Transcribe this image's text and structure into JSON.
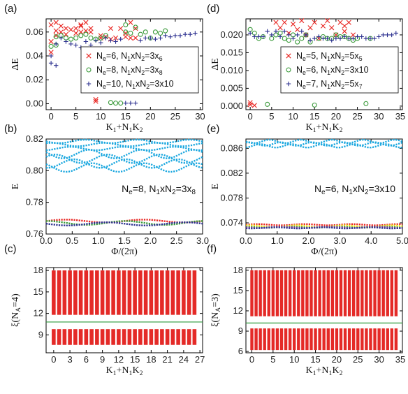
{
  "chart_data": [
    {
      "panel": "(a)",
      "type": "scatter",
      "xlabel": "K1+N1K2",
      "ylabel": "ΔE",
      "xlim": [
        -1,
        30.5
      ],
      "ylim": [
        -0.005,
        0.071
      ],
      "xticks": [
        "0",
        "5",
        "10",
        "15",
        "20",
        "25",
        "30"
      ],
      "yticks": [
        "0.00",
        "0.02",
        "0.04",
        "0.06"
      ],
      "ytick_values": [
        0,
        0.02,
        0.04,
        0.06
      ],
      "xtick_values": [
        0,
        5,
        10,
        15,
        20,
        25,
        30
      ],
      "series": [
        {
          "name": "Ne=6, N1xN2=3x6",
          "marker": "x",
          "color": "#e8231f",
          "points": [
            [
              0,
              0.066
            ],
            [
              0,
              0.052
            ],
            [
              0,
              0.043
            ],
            [
              1,
              0.068
            ],
            [
              1,
              0.061
            ],
            [
              1,
              0.057
            ],
            [
              2,
              0.065
            ],
            [
              2,
              0.06
            ],
            [
              3,
              0.063
            ],
            [
              3,
              0.058
            ],
            [
              4,
              0.062
            ],
            [
              5,
              0.059
            ],
            [
              5,
              0.063
            ],
            [
              6,
              0.066
            ],
            [
              6,
              0.06
            ],
            [
              6,
              0.065
            ],
            [
              7,
              0.068
            ],
            [
              7,
              0.061
            ],
            [
              8,
              0.06
            ],
            [
              8,
              0.063
            ],
            [
              9,
              0.002
            ],
            [
              9,
              0.0035
            ],
            [
              10,
              0.055
            ],
            [
              10,
              0.057
            ],
            [
              11,
              0.056
            ],
            [
              12,
              0.063
            ],
            [
              12,
              0.054
            ],
            [
              13,
              0.055
            ],
            [
              14,
              0.063
            ],
            [
              15,
              0.059
            ],
            [
              15,
              0.056
            ],
            [
              16,
              0.055
            ],
            [
              16,
              0.068
            ],
            [
              17,
              0.063
            ],
            [
              17,
              0.055
            ]
          ]
        },
        {
          "name": "Ne=8, N1xN2=3x8",
          "marker": "o",
          "color": "#3a9a3a",
          "points": [
            [
              0,
              0.048
            ],
            [
              1,
              0.049
            ],
            [
              1,
              0.056
            ],
            [
              2,
              0.057
            ],
            [
              3,
              0.055
            ],
            [
              4,
              0.054
            ],
            [
              5,
              0.055
            ],
            [
              6,
              0.057
            ],
            [
              7,
              0.058
            ],
            [
              8,
              0.055
            ],
            [
              9,
              0.054
            ],
            [
              10,
              0.055
            ],
            [
              11,
              0.057
            ],
            [
              12,
              0.001
            ],
            [
              13,
              0.0005
            ],
            [
              14,
              0.0005
            ],
            [
              15,
              0.06
            ],
            [
              15,
              0.066
            ],
            [
              16,
              0.059
            ],
            [
              17,
              0.064
            ],
            [
              18,
              0.058
            ],
            [
              19,
              0.06
            ],
            [
              20,
              0.055
            ],
            [
              21,
              0.06
            ],
            [
              22,
              0.059
            ],
            [
              23,
              0.061
            ]
          ]
        },
        {
          "name": "Ne=10, N1xN2=3x10",
          "marker": "+",
          "color": "#2b2f8f",
          "points": [
            [
              0,
              0.034
            ],
            [
              0,
              0.04
            ],
            [
              1,
              0.032
            ],
            [
              1,
              0.05
            ],
            [
              2,
              0.055
            ],
            [
              3,
              0.052
            ],
            [
              4,
              0.05
            ],
            [
              5,
              0.049
            ],
            [
              6,
              0.047
            ],
            [
              7,
              0.052
            ],
            [
              8,
              0.049
            ],
            [
              9,
              0.053
            ],
            [
              10,
              0.051
            ],
            [
              11,
              0.055
            ],
            [
              12,
              0.053
            ],
            [
              13,
              0.052
            ],
            [
              14,
              0.054
            ],
            [
              15,
              0.0005
            ],
            [
              16,
              0.0005
            ],
            [
              17,
              0.0005
            ],
            [
              18,
              0.053
            ],
            [
              19,
              0.055
            ],
            [
              20,
              0.055
            ],
            [
              21,
              0.054
            ],
            [
              22,
              0.055
            ],
            [
              23,
              0.057
            ],
            [
              24,
              0.056
            ],
            [
              25,
              0.057
            ],
            [
              26,
              0.057
            ],
            [
              27,
              0.058
            ],
            [
              28,
              0.058
            ],
            [
              29,
              0.059
            ]
          ]
        }
      ]
    },
    {
      "panel": "(b)",
      "type": "line",
      "xlabel": "Φ/(2π)",
      "ylabel": "E",
      "xlim": [
        0,
        3
      ],
      "ylim": [
        0.76,
        0.82
      ],
      "xticks": [
        "0.0",
        "0.5",
        "1.0",
        "1.5",
        "2.0",
        "2.5",
        "3.0"
      ],
      "xtick_values": [
        0,
        0.5,
        1,
        1.5,
        2,
        2.5,
        3
      ],
      "yticks": [
        "0.76",
        "0.78",
        "0.80",
        "0.82"
      ],
      "ytick_values": [
        0.76,
        0.78,
        0.8,
        0.82
      ],
      "annotation": "Ne=8, N1xN2=3x8",
      "upper_band": {
        "color": "#1aa7df",
        "levels": [
          0.8185,
          0.8165,
          0.814,
          0.8105,
          0.8075,
          0.8045,
          0.802
        ]
      },
      "lower_bands": [
        {
          "color": "#e8231f",
          "center": 0.7682,
          "amp": 0.0009,
          "phase": 0
        },
        {
          "color": "#3a9a3a",
          "center": 0.767,
          "amp": 0.0012,
          "phase": 1.5
        },
        {
          "color": "#2b2f8f",
          "center": 0.7664,
          "amp": 0.001,
          "phase": 3
        }
      ]
    },
    {
      "panel": "(c)",
      "type": "scatter",
      "xlabel": "K1+N1K2",
      "ylabel": "ξ(NA=4)",
      "xlim": [
        -1.4,
        27.5
      ],
      "ylim": [
        6.5,
        18.4
      ],
      "xticks": [
        "0",
        "3",
        "6",
        "9",
        "12",
        "15",
        "18",
        "21",
        "24",
        "27"
      ],
      "xtick_values": [
        0,
        3,
        6,
        9,
        12,
        15,
        18,
        21,
        24,
        27
      ],
      "yticks": [
        "9",
        "12",
        "15",
        "18"
      ],
      "ytick_values": [
        9,
        12,
        15,
        18
      ],
      "gap_line": 10.8,
      "ranges": {
        "upper": [
          11.8,
          18.0
        ],
        "lower": [
          7.6,
          9.8
        ]
      },
      "sectors": 27
    },
    {
      "panel": "(d)",
      "type": "scatter",
      "xlabel": "K1+N1K2",
      "ylabel": "ΔE",
      "xlim": [
        -1,
        35.5
      ],
      "ylim": [
        -0.001,
        0.0245
      ],
      "xticks": [
        "0",
        "5",
        "10",
        "15",
        "20",
        "25",
        "30",
        "35"
      ],
      "xtick_values": [
        0,
        5,
        10,
        15,
        20,
        25,
        30,
        35
      ],
      "yticks": [
        "0.000",
        "0.005",
        "0.010",
        "0.015",
        "0.020"
      ],
      "ytick_values": [
        0,
        0.005,
        0.01,
        0.015,
        0.02
      ],
      "series": [
        {
          "name": "Ne=5, N1xN2=5x5",
          "marker": "x",
          "color": "#e8231f",
          "points": [
            [
              0,
              0.0004
            ],
            [
              0,
              0.001
            ],
            [
              1,
              0.0002
            ],
            [
              6,
              0.0235
            ],
            [
              7,
              0.022
            ],
            [
              8,
              0.0235
            ],
            [
              9,
              0.0205
            ],
            [
              10,
              0.023
            ],
            [
              11,
              0.0215
            ],
            [
              12,
              0.024
            ],
            [
              13,
              0.02
            ],
            [
              14,
              0.022
            ],
            [
              15,
              0.0235
            ],
            [
              16,
              0.019
            ],
            [
              17,
              0.0225
            ],
            [
              18,
              0.024
            ],
            [
              19,
              0.022
            ],
            [
              20,
              0.02
            ],
            [
              21,
              0.0235
            ],
            [
              22,
              0.0225
            ],
            [
              22,
              0.021
            ],
            [
              23,
              0.0235
            ],
            [
              24,
              0.02
            ]
          ]
        },
        {
          "name": "Ne=6, N1xN2=3x10",
          "marker": "o",
          "color": "#3a9a3a",
          "points": [
            [
              0,
              0.0215
            ],
            [
              1,
              0.0205
            ],
            [
              2,
              0.019
            ],
            [
              3,
              0.0195
            ],
            [
              4,
              0.0005
            ],
            [
              5,
              0.019
            ],
            [
              6,
              0.02
            ],
            [
              7,
              0.0205
            ],
            [
              8,
              0.019
            ],
            [
              9,
              0.0185
            ],
            [
              10,
              0.02
            ],
            [
              11,
              0.018
            ],
            [
              12,
              0.019
            ],
            [
              13,
              0.02
            ],
            [
              14,
              0.018
            ],
            [
              15,
              0.0003
            ],
            [
              16,
              0.019
            ],
            [
              17,
              0.0195
            ],
            [
              18,
              0.019
            ],
            [
              19,
              0.019
            ],
            [
              20,
              0.02
            ],
            [
              21,
              0.0195
            ],
            [
              22,
              0.0195
            ],
            [
              23,
              0.019
            ],
            [
              24,
              0.0185
            ],
            [
              25,
              0.019
            ],
            [
              27,
              0.0007
            ],
            [
              28,
              0.019
            ]
          ]
        },
        {
          "name": "Ne=7, N1xN2=5x7",
          "marker": "+",
          "color": "#2b2f8f",
          "points": [
            [
              0,
              0.0205
            ],
            [
              1,
              0.0195
            ],
            [
              2,
              0.0195
            ],
            [
              3,
              0.0195
            ],
            [
              4,
              0.021
            ],
            [
              5,
              0.02
            ],
            [
              6,
              0.021
            ],
            [
              7,
              0.0195
            ],
            [
              8,
              0.021
            ],
            [
              9,
              0.02
            ],
            [
              10,
              0.019
            ],
            [
              11,
              0.02
            ],
            [
              12,
              0.021
            ],
            [
              13,
              0.02
            ],
            [
              14,
              0.0185
            ],
            [
              15,
              0.019
            ],
            [
              16,
              0.0195
            ],
            [
              17,
              0.019
            ],
            [
              18,
              0.019
            ],
            [
              19,
              0.0185
            ],
            [
              20,
              0.019
            ],
            [
              21,
              0.019
            ],
            [
              22,
              0.0195
            ],
            [
              23,
              0.019
            ],
            [
              24,
              0.019
            ],
            [
              25,
              0.0195
            ],
            [
              26,
              0.0195
            ],
            [
              27,
              0.019
            ],
            [
              28,
              0.019
            ],
            [
              29,
              0.019
            ],
            [
              30,
              0.0195
            ],
            [
              31,
              0.02
            ],
            [
              32,
              0.02
            ],
            [
              33,
              0.02
            ],
            [
              34,
              0.0205
            ]
          ]
        }
      ]
    },
    {
      "panel": "(e)",
      "type": "line",
      "xlabel": "Φ/(2π)",
      "ylabel": "E",
      "xlim": [
        0,
        5
      ],
      "ylim": [
        0.0722,
        0.0875
      ],
      "xticks": [
        "0.0",
        "1.0",
        "2.0",
        "3.0",
        "4.0",
        "5.0"
      ],
      "xtick_values": [
        0,
        1,
        2,
        3,
        4,
        5
      ],
      "yticks": [
        "0.074",
        "0.078",
        "0.082",
        "0.086"
      ],
      "ytick_values": [
        0.074,
        0.078,
        0.082,
        0.086
      ],
      "annotation": "Ne=6, N1xN2=3x10",
      "upper_band": {
        "color": "#1aa7df",
        "levels": [
          0.0871,
          0.0867,
          0.0864
        ]
      },
      "lower_bands": [
        {
          "color": "#e8231f",
          "center": 0.0737,
          "amp": 0.0001,
          "phase": 0
        },
        {
          "color": "#f2e11a",
          "center": 0.07345,
          "amp": 0.00015,
          "phase": 1
        },
        {
          "color": "#3a9a3a",
          "center": 0.0733,
          "amp": 0.0001,
          "phase": 2
        },
        {
          "color": "#8e3fa0",
          "center": 0.07325,
          "amp": 0.0001,
          "phase": 3
        },
        {
          "color": "#2b2f8f",
          "center": 0.0732,
          "amp": 0.0001,
          "phase": 4
        }
      ]
    },
    {
      "panel": "(f)",
      "type": "scatter",
      "xlabel": "K1+N1K2",
      "ylabel": "ξ(NA=3)",
      "xlim": [
        -1.4,
        35.5
      ],
      "ylim": [
        5.8,
        18.4
      ],
      "xticks": [
        "0",
        "5",
        "10",
        "15",
        "20",
        "25",
        "30",
        "35"
      ],
      "xtick_values": [
        0,
        5,
        10,
        15,
        20,
        25,
        30,
        35
      ],
      "yticks": [
        "6",
        "9",
        "12",
        "15",
        "18"
      ],
      "ytick_values": [
        6,
        9,
        12,
        15,
        18
      ],
      "gap_line": 10.2,
      "ranges": {
        "upper": [
          11.2,
          18.0
        ],
        "lower": [
          6.2,
          9.4
        ]
      },
      "sectors": 35
    }
  ],
  "colors": {
    "red": "#e8231f",
    "green": "#3a9a3a",
    "navy": "#2b2f8f",
    "cyan": "#1aa7df",
    "gapline": "#2e9a3c"
  }
}
